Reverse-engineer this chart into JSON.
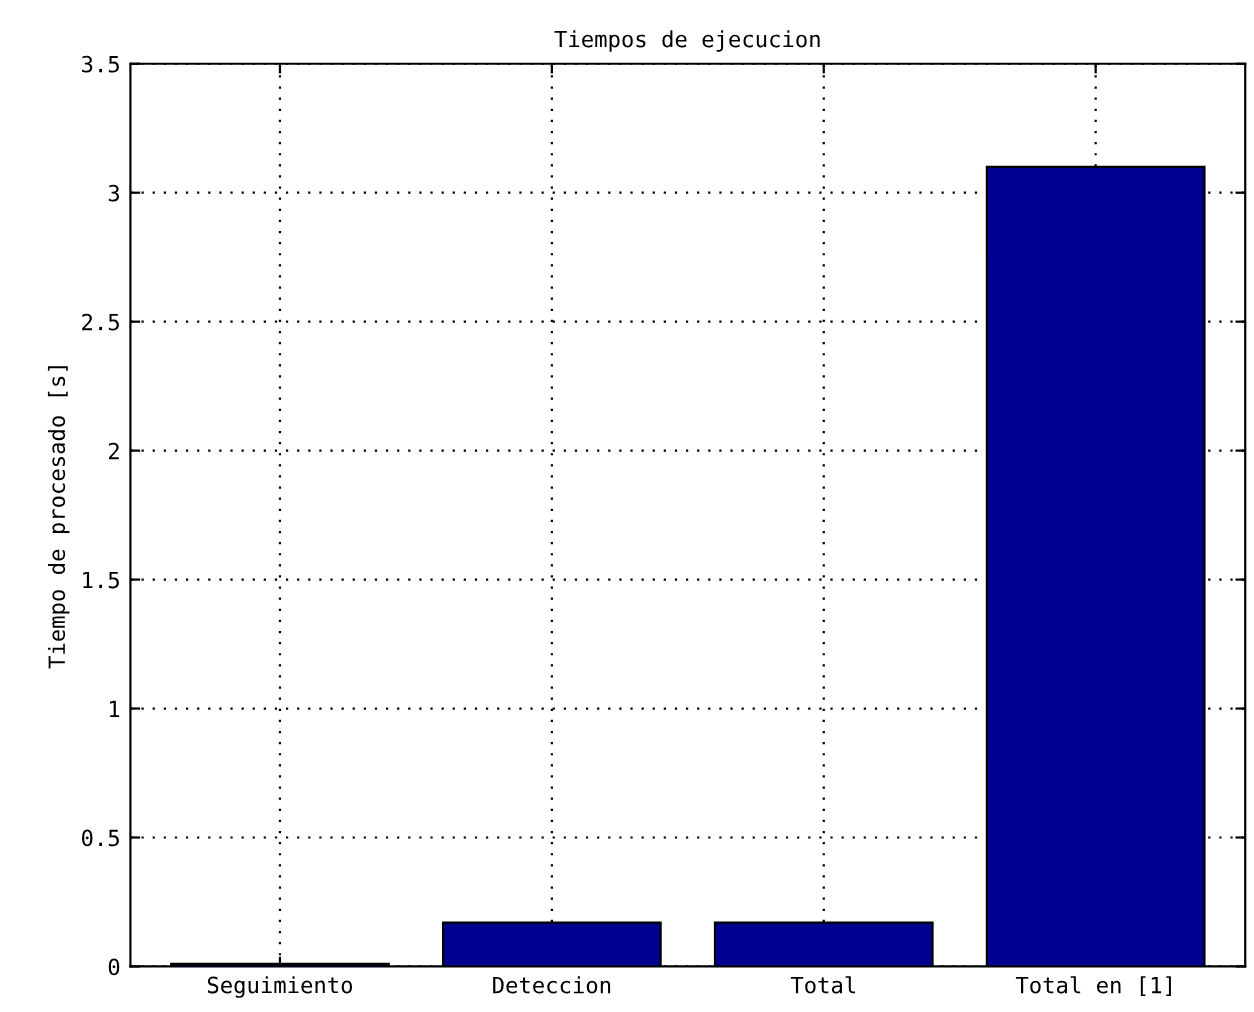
{
  "chart_data": {
    "type": "bar",
    "title": "Tiempos de ejecucion",
    "ylabel": "Tiempo de procesado [s]",
    "categories": [
      "Seguimiento",
      "Deteccion",
      "Total",
      "Total en [1]"
    ],
    "values": [
      0.01,
      0.17,
      0.17,
      3.1
    ],
    "color": "#000090",
    "ylim": [
      0,
      3.5
    ],
    "yticks": [
      0,
      0.5,
      1,
      1.5,
      2,
      2.5,
      3,
      3.5
    ],
    "grid": true
  }
}
